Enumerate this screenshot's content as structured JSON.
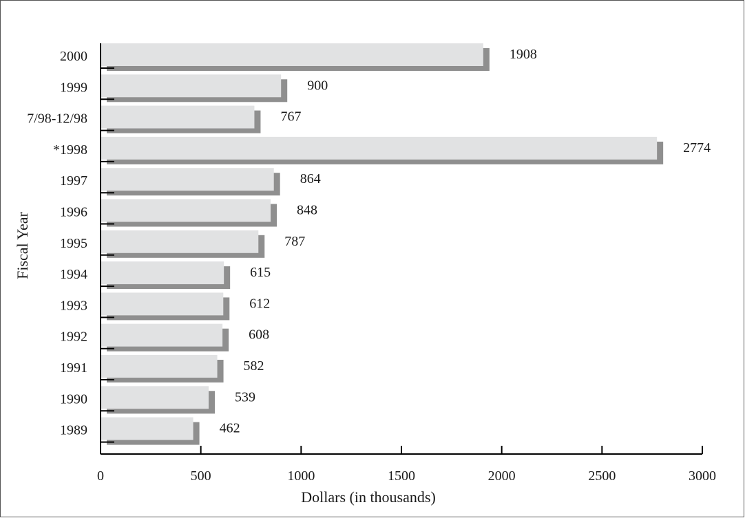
{
  "chart_data": {
    "type": "bar",
    "orientation": "horizontal",
    "title": "",
    "xlabel": "Dollars (in thousands)",
    "ylabel": "Fiscal Year",
    "xlim": [
      0,
      3000
    ],
    "xticks": [
      0,
      500,
      1000,
      1500,
      2000,
      2500,
      3000
    ],
    "grid": false,
    "categories": [
      "2000",
      "1999",
      "7/98-12/98",
      "*1998",
      "1997",
      "1996",
      "1995",
      "1994",
      "1993",
      "1992",
      "1991",
      "1990",
      "1989"
    ],
    "values": [
      1908,
      900,
      767,
      2774,
      864,
      848,
      787,
      615,
      612,
      608,
      582,
      539,
      462
    ],
    "colors": {
      "bar": "#e1e2e3",
      "shadow": "#8f8f8f",
      "axis": "#000000",
      "text": "#1a1a1a"
    }
  }
}
